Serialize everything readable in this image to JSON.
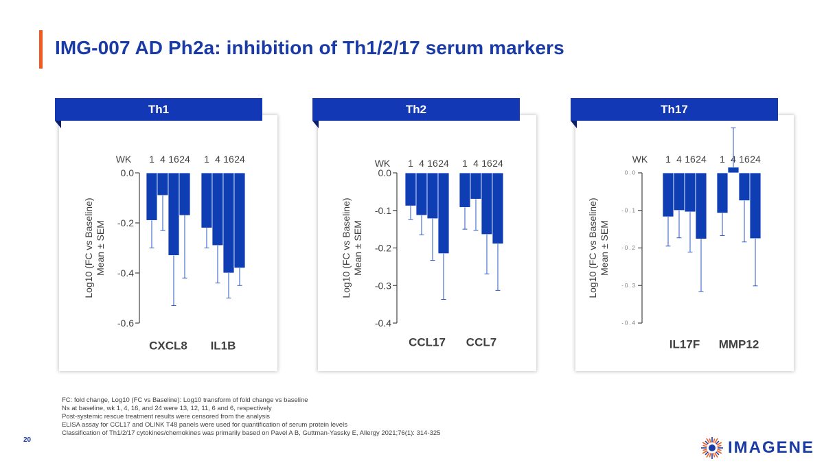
{
  "slide": {
    "title": "IMG-007 AD Ph2a: inhibition of Th1/2/17 serum markers",
    "page_number": "20",
    "logo_text": "IMAGENE",
    "footnotes": [
      "FC: fold change, Log10 (FC vs Baseline): Log10 transform of fold change vs baseline",
      "Ns at baseline, wk 1, 4, 16, and 24 were 13, 12, 11, 6 and 6, respectively",
      "Post-systemic rescue treatment results were censored from the analysis",
      "ELISA assay for CCL17 and OLINK T48 panels were used for quantification of serum protein levels",
      "Classification of Th1/2/17 cytokines/chemokines was primarily based on Pavel A B, Guttman-Yassky E, Allergy 2021;76(1): 314-325"
    ]
  },
  "colors": {
    "accent": "#f05a22",
    "title": "#1a3aa6",
    "banner": "#1338b5",
    "bar": "#0f3eb4"
  },
  "chart_data": [
    {
      "type": "bar",
      "panel_title": "Th1",
      "ylabel_line1": "Log10 (FC vs Baseline)",
      "ylabel_line2": "Mean ± SEM",
      "wk_label": "WK",
      "week_labels": [
        "1",
        "4",
        "16",
        "24"
      ],
      "ylim": [
        -0.6,
        0.0
      ],
      "yticks": [
        0.0,
        -0.2,
        -0.4,
        -0.6
      ],
      "ytick_labels": [
        "0.0",
        "-0.2",
        "-0.4",
        "-0.6"
      ],
      "series": [
        {
          "name": "CXCL8",
          "values": [
            -0.19,
            -0.09,
            -0.33,
            -0.17
          ],
          "errors": [
            0.11,
            0.14,
            0.2,
            0.25
          ]
        },
        {
          "name": "IL1B",
          "values": [
            -0.22,
            -0.29,
            -0.4,
            -0.38
          ],
          "errors": [
            0.08,
            0.15,
            0.1,
            0.07
          ]
        }
      ]
    },
    {
      "type": "bar",
      "panel_title": "Th2",
      "ylabel_line1": "Log10 (FC vs Baseline)",
      "ylabel_line2": "Mean ± SEM",
      "wk_label": "WK",
      "week_labels": [
        "1",
        "4",
        "16",
        "24"
      ],
      "ylim": [
        -0.4,
        0.0
      ],
      "yticks": [
        0.0,
        -0.1,
        -0.2,
        -0.3,
        -0.4
      ],
      "ytick_labels": [
        "0.0",
        "-0.1",
        "-0.2",
        "-0.3",
        "-0.4"
      ],
      "series": [
        {
          "name": "CCL17",
          "values": [
            -0.088,
            -0.113,
            -0.122,
            -0.215
          ],
          "errors": [
            0.036,
            0.052,
            0.111,
            0.122
          ]
        },
        {
          "name": "CCL7",
          "values": [
            -0.092,
            -0.07,
            -0.164,
            -0.189
          ],
          "errors": [
            0.058,
            0.083,
            0.105,
            0.124
          ]
        }
      ]
    },
    {
      "type": "bar",
      "panel_title": "Th17",
      "ylabel_line1": "Log10 (FC vs Baseline)",
      "ylabel_line2": "Mean ± SEM",
      "wk_label": "WK",
      "week_labels": [
        "1",
        "4",
        "16",
        "24"
      ],
      "ylim": [
        -0.4,
        0.0
      ],
      "yticks": [
        0.0,
        -0.1,
        -0.2,
        -0.3,
        -0.4
      ],
      "ytick_labels": [
        "0.0",
        "-0.1",
        "-0.2",
        "-0.3",
        "-0.4"
      ],
      "tick_label_style": "small",
      "series": [
        {
          "name": "IL17F",
          "values": [
            -0.117,
            -0.1,
            -0.104,
            -0.176
          ],
          "errors": [
            0.078,
            0.073,
            0.107,
            0.14
          ]
        },
        {
          "name": "MMP12",
          "values": [
            -0.107,
            0.015,
            -0.074,
            -0.175
          ],
          "errors": [
            0.06,
            0.105,
            0.11,
            0.126
          ]
        }
      ]
    }
  ]
}
